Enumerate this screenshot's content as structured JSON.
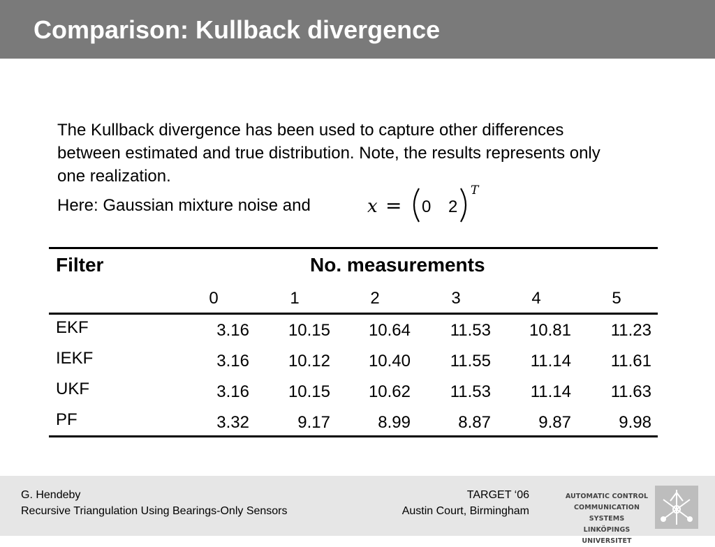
{
  "slide": {
    "title": "Comparison: Kullback divergence",
    "paragraph": "The Kullback divergence has been used to capture other differences between estimated and true distribution.  Note, the results represents only one realization.",
    "here_text": "Here: Gaussian mixture noise and",
    "formula": {
      "var": "x",
      "eq": "=",
      "v1": "0",
      "v2": "2",
      "sup": "T"
    }
  },
  "table": {
    "filter_header": "Filter",
    "measurements_header": "No. measurements",
    "columns": [
      "0",
      "1",
      "2",
      "3",
      "4",
      "5"
    ],
    "rows": [
      {
        "name": "EKF",
        "values": [
          "3.16",
          "10.15",
          "10.64",
          "11.53",
          "10.81",
          "11.23"
        ]
      },
      {
        "name": "IEKF",
        "values": [
          "3.16",
          "10.12",
          "10.40",
          "11.55",
          "11.14",
          "11.61"
        ]
      },
      {
        "name": "UKF",
        "values": [
          "3.16",
          "10.15",
          "10.62",
          "11.53",
          "11.14",
          "11.63"
        ]
      },
      {
        "name": "PF",
        "values": [
          "3.32",
          "9.17",
          "8.99",
          "8.87",
          "9.87",
          "9.98"
        ]
      }
    ]
  },
  "footer": {
    "author": "G. Hendeby",
    "talk_title": "Recursive Triangulation Using Bearings-Only Sensors",
    "event": "TARGET ‘06",
    "venue": "Austin Court, Birmingham",
    "logo_lines": [
      "AUTOMATIC CONTROL",
      "COMMUNICATION SYSTEMS",
      "LINKÖPINGS UNIVERSITET"
    ]
  },
  "colors": {
    "title_bar": "#7a7a7a",
    "footer_bg": "#e6e6e6"
  }
}
